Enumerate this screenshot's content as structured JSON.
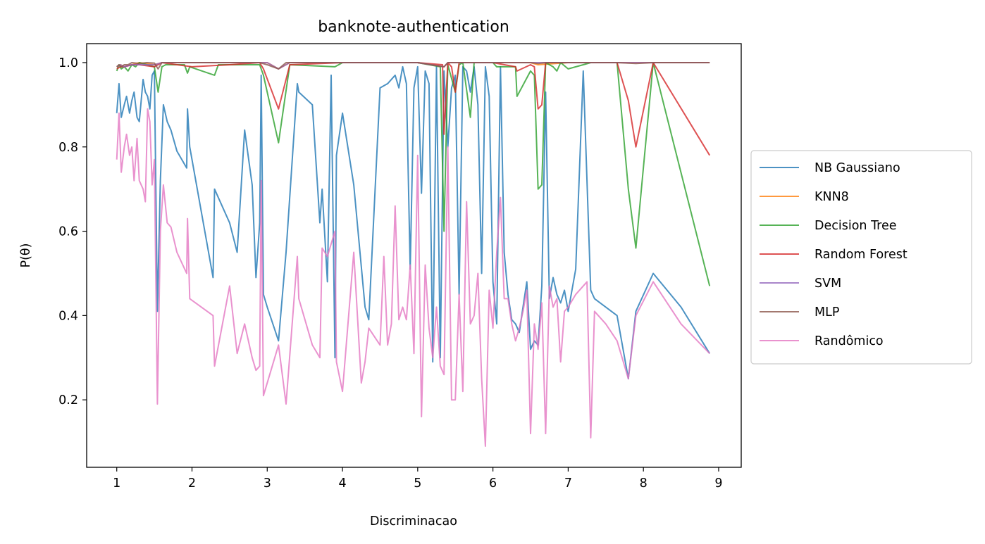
{
  "chart_data": {
    "type": "line",
    "title": "banknote-authentication",
    "xlabel": "Discriminacao",
    "ylabel": "P(θ)",
    "xlim": [
      0.6,
      9.3
    ],
    "ylim": [
      0.04,
      1.045
    ],
    "xticks": [
      1,
      2,
      3,
      4,
      5,
      6,
      7,
      8,
      9
    ],
    "xtick_labels": [
      "1",
      "2",
      "3",
      "4",
      "5",
      "6",
      "7",
      "8",
      "9"
    ],
    "yticks": [
      0.2,
      0.4,
      0.6,
      0.8,
      1.0
    ],
    "ytick_labels": [
      "0.2",
      "0.4",
      "0.6",
      "0.8",
      "1.0"
    ],
    "grid": false,
    "legend_position": "center-right-outside",
    "series": [
      {
        "name": "NB Gaussiano",
        "color": "#1f77b4",
        "x": [
          1.0,
          1.03,
          1.06,
          1.1,
          1.13,
          1.17,
          1.2,
          1.23,
          1.27,
          1.3,
          1.35,
          1.38,
          1.41,
          1.44,
          1.47,
          1.5,
          1.54,
          1.58,
          1.62,
          1.67,
          1.72,
          1.8,
          1.93,
          1.94,
          1.97,
          2.28,
          2.3,
          2.5,
          2.6,
          2.7,
          2.8,
          2.85,
          2.9,
          2.92,
          2.95,
          3.0,
          3.15,
          3.25,
          3.4,
          3.42,
          3.6,
          3.7,
          3.73,
          3.8,
          3.85,
          3.9,
          3.92,
          4.0,
          4.15,
          4.3,
          4.35,
          4.5,
          4.6,
          4.7,
          4.75,
          4.8,
          4.85,
          4.9,
          4.95,
          5.0,
          5.05,
          5.1,
          5.15,
          5.2,
          5.25,
          5.3,
          5.35,
          5.4,
          5.45,
          5.5,
          5.55,
          5.6,
          5.65,
          5.7,
          5.75,
          5.8,
          5.85,
          5.9,
          5.95,
          6.0,
          6.05,
          6.1,
          6.15,
          6.2,
          6.25,
          6.3,
          6.35,
          6.4,
          6.45,
          6.5,
          6.55,
          6.6,
          6.65,
          6.7,
          6.75,
          6.8,
          6.85,
          6.9,
          6.95,
          7.0,
          7.1,
          7.2,
          7.3,
          7.35,
          7.5,
          7.65,
          7.8,
          7.9,
          8.13,
          8.5,
          8.88
        ],
        "y": [
          0.88,
          0.95,
          0.87,
          0.9,
          0.92,
          0.88,
          0.91,
          0.93,
          0.87,
          0.86,
          0.96,
          0.93,
          0.92,
          0.89,
          0.97,
          0.98,
          0.41,
          0.72,
          0.9,
          0.86,
          0.84,
          0.79,
          0.75,
          0.89,
          0.8,
          0.49,
          0.7,
          0.62,
          0.55,
          0.84,
          0.71,
          0.49,
          0.62,
          0.97,
          0.45,
          0.42,
          0.34,
          0.55,
          0.95,
          0.93,
          0.9,
          0.62,
          0.7,
          0.48,
          0.97,
          0.3,
          0.78,
          0.88,
          0.71,
          0.42,
          0.39,
          0.94,
          0.95,
          0.97,
          0.94,
          0.99,
          0.95,
          0.51,
          0.94,
          0.99,
          0.69,
          0.98,
          0.95,
          0.29,
          0.99,
          0.3,
          0.98,
          0.8,
          0.94,
          0.97,
          0.45,
          0.99,
          0.98,
          0.93,
          0.99,
          0.9,
          0.5,
          0.99,
          0.92,
          0.48,
          0.38,
          0.99,
          0.55,
          0.45,
          0.39,
          0.38,
          0.36,
          0.42,
          0.48,
          0.32,
          0.34,
          0.33,
          0.47,
          0.93,
          0.44,
          0.49,
          0.45,
          0.43,
          0.46,
          0.41,
          0.51,
          0.98,
          0.46,
          0.44,
          0.42,
          0.4,
          0.25,
          0.41,
          0.5,
          0.42,
          0.31
        ]
      },
      {
        "name": "KNN8",
        "color": "#ff7f0e",
        "x": [
          1.0,
          1.05,
          1.1,
          1.2,
          1.3,
          1.5,
          1.6,
          2.0,
          2.5,
          3.0,
          3.15,
          3.3,
          4.0,
          5.0,
          5.35,
          5.4,
          6.0,
          6.5,
          6.6,
          7.0,
          7.5,
          8.0,
          8.88
        ],
        "y": [
          0.99,
          0.995,
          0.99,
          0.995,
          1.0,
          0.995,
          1.0,
          1.0,
          1.0,
          1.0,
          0.985,
          1.0,
          1.0,
          1.0,
          0.99,
          1.0,
          1.0,
          1.0,
          0.995,
          1.0,
          1.0,
          1.0,
          1.0
        ]
      },
      {
        "name": "Decision Tree",
        "color": "#2ca02c",
        "x": [
          1.0,
          1.03,
          1.06,
          1.1,
          1.15,
          1.2,
          1.25,
          1.3,
          1.4,
          1.5,
          1.55,
          1.6,
          1.65,
          1.9,
          1.94,
          1.97,
          2.3,
          2.35,
          2.9,
          2.95,
          3.15,
          3.3,
          3.9,
          3.95,
          4.0,
          5.0,
          5.3,
          5.35,
          5.4,
          5.5,
          5.55,
          5.6,
          5.7,
          5.75,
          6.0,
          6.05,
          6.3,
          6.32,
          6.5,
          6.55,
          6.6,
          6.65,
          6.7,
          6.8,
          6.85,
          6.9,
          7.0,
          7.2,
          7.3,
          7.65,
          7.8,
          7.9,
          8.13,
          8.88
        ],
        "y": [
          0.98,
          0.995,
          0.985,
          0.99,
          0.98,
          0.995,
          0.99,
          1.0,
          0.995,
          0.99,
          0.93,
          0.99,
          0.995,
          0.995,
          0.975,
          0.99,
          0.97,
          0.995,
          0.995,
          0.97,
          0.81,
          0.995,
          0.99,
          0.995,
          1.0,
          1.0,
          0.99,
          0.6,
          0.995,
          0.93,
          0.995,
          1.0,
          0.87,
          1.0,
          1.0,
          0.99,
          0.99,
          0.92,
          0.98,
          0.97,
          0.7,
          0.71,
          1.0,
          0.99,
          0.98,
          1.0,
          0.985,
          0.995,
          1.0,
          1.0,
          0.7,
          0.56,
          1.0,
          0.47
        ]
      },
      {
        "name": "Random Forest",
        "color": "#d62728",
        "x": [
          1.0,
          1.05,
          1.1,
          1.2,
          1.3,
          1.5,
          1.6,
          2.0,
          2.5,
          2.9,
          2.95,
          3.15,
          3.3,
          4.0,
          5.0,
          5.33,
          5.35,
          5.4,
          5.45,
          5.5,
          5.55,
          6.0,
          6.3,
          6.32,
          6.5,
          6.55,
          6.6,
          6.65,
          6.7,
          7.0,
          7.65,
          7.8,
          7.9,
          8.13,
          8.88
        ],
        "y": [
          0.985,
          0.99,
          0.99,
          0.995,
          0.995,
          0.99,
          1.0,
          0.99,
          0.995,
          1.0,
          0.985,
          0.89,
          0.995,
          1.0,
          1.0,
          0.995,
          0.83,
          1.0,
          0.99,
          0.93,
          1.0,
          1.0,
          0.99,
          0.98,
          0.995,
          0.99,
          0.89,
          0.9,
          1.0,
          1.0,
          1.0,
          0.91,
          0.8,
          1.0,
          0.78
        ]
      },
      {
        "name": "SVM",
        "color": "#9467bd",
        "x": [
          1.0,
          1.05,
          1.1,
          1.2,
          1.3,
          1.5,
          1.6,
          2.0,
          3.0,
          3.15,
          3.3,
          4.0,
          5.0,
          5.35,
          5.4,
          6.0,
          6.6,
          7.0,
          8.0,
          8.88
        ],
        "y": [
          0.99,
          0.995,
          0.99,
          0.995,
          0.995,
          0.995,
          1.0,
          1.0,
          1.0,
          0.985,
          1.0,
          1.0,
          1.0,
          0.99,
          1.0,
          1.0,
          1.0,
          1.0,
          1.0,
          1.0
        ]
      },
      {
        "name": "MLP",
        "color": "#8c564b",
        "x": [
          1.0,
          1.03,
          1.06,
          1.1,
          1.15,
          1.2,
          1.3,
          1.4,
          1.5,
          1.55,
          1.6,
          2.0,
          2.5,
          2.9,
          3.0,
          3.15,
          3.25,
          3.5,
          4.0,
          4.5,
          5.0,
          5.35,
          5.4,
          5.5,
          5.6,
          6.0,
          6.5,
          6.6,
          6.7,
          7.0,
          7.5,
          7.65,
          7.9,
          8.13,
          8.5,
          8.88
        ],
        "y": [
          0.99,
          0.995,
          0.99,
          0.995,
          0.995,
          1.0,
          0.998,
          1.0,
          0.999,
          0.985,
          1.0,
          1.0,
          1.0,
          1.0,
          0.995,
          0.985,
          1.0,
          1.0,
          1.0,
          1.0,
          1.0,
          0.99,
          1.0,
          1.0,
          1.0,
          1.0,
          1.0,
          0.998,
          1.0,
          1.0,
          1.0,
          1.0,
          0.998,
          1.0,
          1.0,
          1.0
        ]
      },
      {
        "name": "Randômico",
        "color": "#e377c2",
        "x": [
          1.0,
          1.03,
          1.06,
          1.1,
          1.13,
          1.17,
          1.2,
          1.23,
          1.27,
          1.3,
          1.35,
          1.38,
          1.41,
          1.44,
          1.47,
          1.5,
          1.54,
          1.58,
          1.62,
          1.67,
          1.72,
          1.8,
          1.93,
          1.94,
          1.97,
          2.28,
          2.3,
          2.5,
          2.6,
          2.7,
          2.8,
          2.85,
          2.9,
          2.92,
          2.95,
          3.15,
          3.25,
          3.4,
          3.42,
          3.6,
          3.7,
          3.73,
          3.8,
          3.85,
          3.9,
          3.92,
          4.0,
          4.15,
          4.25,
          4.3,
          4.35,
          4.5,
          4.55,
          4.6,
          4.65,
          4.7,
          4.75,
          4.8,
          4.85,
          4.9,
          4.95,
          5.0,
          5.05,
          5.1,
          5.15,
          5.2,
          5.25,
          5.3,
          5.35,
          5.4,
          5.45,
          5.5,
          5.55,
          5.6,
          5.65,
          5.7,
          5.75,
          5.8,
          5.85,
          5.9,
          5.95,
          6.0,
          6.05,
          6.1,
          6.15,
          6.2,
          6.25,
          6.3,
          6.35,
          6.4,
          6.45,
          6.5,
          6.55,
          6.6,
          6.65,
          6.7,
          6.75,
          6.8,
          6.85,
          6.9,
          6.95,
          7.0,
          7.1,
          7.25,
          7.3,
          7.35,
          7.5,
          7.65,
          7.8,
          7.9,
          8.13,
          8.5,
          8.88
        ],
        "y": [
          0.77,
          0.88,
          0.74,
          0.8,
          0.83,
          0.78,
          0.8,
          0.72,
          0.82,
          0.72,
          0.7,
          0.67,
          0.89,
          0.86,
          0.71,
          0.77,
          0.19,
          0.6,
          0.71,
          0.62,
          0.61,
          0.55,
          0.5,
          0.63,
          0.44,
          0.4,
          0.28,
          0.47,
          0.31,
          0.38,
          0.3,
          0.27,
          0.28,
          0.72,
          0.21,
          0.33,
          0.19,
          0.54,
          0.44,
          0.33,
          0.3,
          0.56,
          0.54,
          0.57,
          0.6,
          0.29,
          0.22,
          0.55,
          0.24,
          0.29,
          0.37,
          0.33,
          0.54,
          0.33,
          0.38,
          0.66,
          0.39,
          0.42,
          0.39,
          0.52,
          0.31,
          0.78,
          0.16,
          0.52,
          0.37,
          0.3,
          0.42,
          0.28,
          0.26,
          0.8,
          0.2,
          0.2,
          0.45,
          0.22,
          0.67,
          0.38,
          0.4,
          0.5,
          0.25,
          0.09,
          0.46,
          0.37,
          0.55,
          0.68,
          0.44,
          0.44,
          0.38,
          0.34,
          0.37,
          0.41,
          0.46,
          0.12,
          0.38,
          0.32,
          0.43,
          0.12,
          0.47,
          0.42,
          0.44,
          0.29,
          0.41,
          0.42,
          0.45,
          0.48,
          0.11,
          0.41,
          0.38,
          0.34,
          0.25,
          0.4,
          0.48,
          0.38,
          0.31
        ]
      }
    ]
  }
}
